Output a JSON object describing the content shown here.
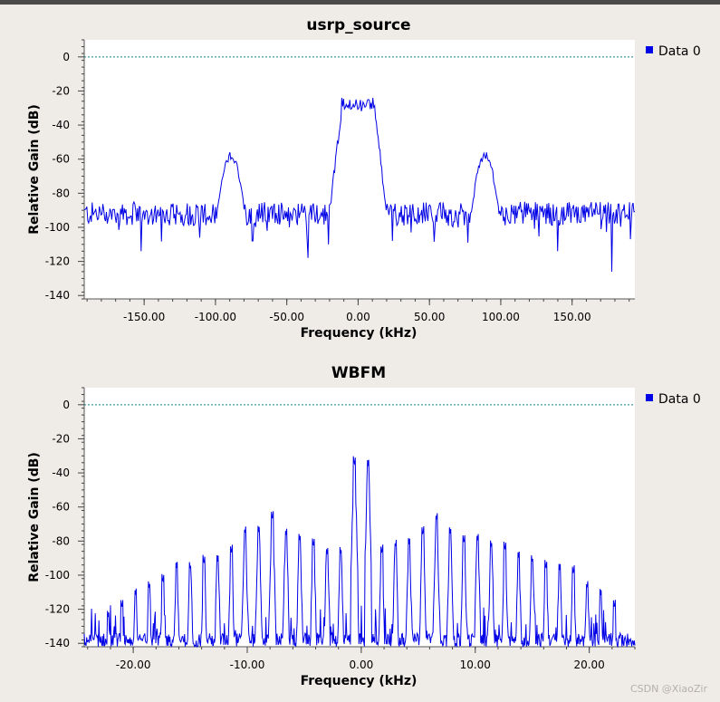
{
  "watermark": "CSDN @XiaoZir",
  "colors": {
    "trace": "#0000e6",
    "reference": "#11808a",
    "legend_swatch": "#0000e6"
  },
  "chart_data": [
    {
      "type": "line",
      "title": "usrp_source",
      "xlabel": "Frequency (kHz)",
      "ylabel": "Relative Gain (dB)",
      "xlim": [
        -192,
        194
      ],
      "ylim": [
        -142,
        10
      ],
      "xticks": [
        -150,
        -100,
        -50,
        0,
        50,
        100,
        150
      ],
      "xtick_labels": [
        "-150.00",
        "-100.00",
        "-50.00",
        "0.00",
        "50.00",
        "100.00",
        "150.00"
      ],
      "yticks": [
        0,
        -20,
        -40,
        -60,
        -80,
        -100,
        -120,
        -140
      ],
      "ytick_labels": [
        "0",
        "-20",
        "-40",
        "-60",
        "-80",
        "-100",
        "-120",
        "-140"
      ],
      "reference_line": 0,
      "legend": [
        "Data 0"
      ],
      "series": [
        {
          "name": "Data 0",
          "noise_floor": -92,
          "peaks": [
            {
              "center": -89,
              "level": -58,
              "width": 9
            },
            {
              "center": 0,
              "level": -24,
              "width": 26,
              "shape": "flat"
            },
            {
              "center": 89,
              "level": -58,
              "width": 9
            }
          ],
          "spikes": [
            {
              "x": -152,
              "y": -114
            },
            {
              "x": -111,
              "y": -106
            },
            {
              "x": -74,
              "y": -108
            },
            {
              "x": -35,
              "y": -118
            },
            {
              "x": -21,
              "y": -110
            },
            {
              "x": 24,
              "y": -108
            },
            {
              "x": 77,
              "y": -109
            },
            {
              "x": 140,
              "y": -114
            },
            {
              "x": 178,
              "y": -126
            },
            {
              "x": 191,
              "y": -107
            }
          ]
        }
      ]
    },
    {
      "type": "line",
      "title": "WBFM",
      "xlabel": "Frequency (kHz)",
      "ylabel": "Relative Gain (dB)",
      "xlim": [
        -24.3,
        24.0
      ],
      "ylim": [
        -142,
        10
      ],
      "xticks": [
        -20,
        -10,
        0,
        10,
        20
      ],
      "xtick_labels": [
        "-20.00",
        "-10.00",
        "0.00",
        "10.00",
        "20.00"
      ],
      "yticks": [
        0,
        -20,
        -40,
        -60,
        -80,
        -100,
        -120,
        -140
      ],
      "ytick_labels": [
        "0",
        "-20",
        "-40",
        "-60",
        "-80",
        "-100",
        "-120",
        "-140"
      ],
      "reference_line": 0,
      "legend": [
        "Data 0"
      ],
      "series": [
        {
          "name": "Data 0",
          "floor": -138,
          "comb_spacing": 1.2,
          "comb_offset": 0.0,
          "comb_x": [
            -22.2,
            -21.0,
            -19.8,
            -18.6,
            -17.4,
            -16.2,
            -15.0,
            -13.8,
            -12.6,
            -11.4,
            -10.2,
            -9.0,
            -7.8,
            -6.6,
            -5.4,
            -4.2,
            -3.0,
            -1.8,
            -0.6,
            0.6,
            1.8,
            3.0,
            4.2,
            5.4,
            6.6,
            7.8,
            9.0,
            10.2,
            11.4,
            12.6,
            13.8,
            15.0,
            16.2,
            17.4,
            18.6,
            19.8,
            21.0,
            22.2
          ],
          "comb_peaks": [
            -125,
            -120,
            -112,
            -108,
            -105,
            -96,
            -97,
            -94,
            -92,
            -88,
            -76,
            -75,
            -68,
            -77,
            -80,
            -84,
            -88,
            -88,
            -36,
            -36,
            -88,
            -84,
            -82,
            -77,
            -68,
            -76,
            -82,
            -80,
            -84,
            -86,
            -90,
            -93,
            -97,
            -97,
            -100,
            -108,
            -112,
            -120
          ]
        }
      ]
    }
  ]
}
